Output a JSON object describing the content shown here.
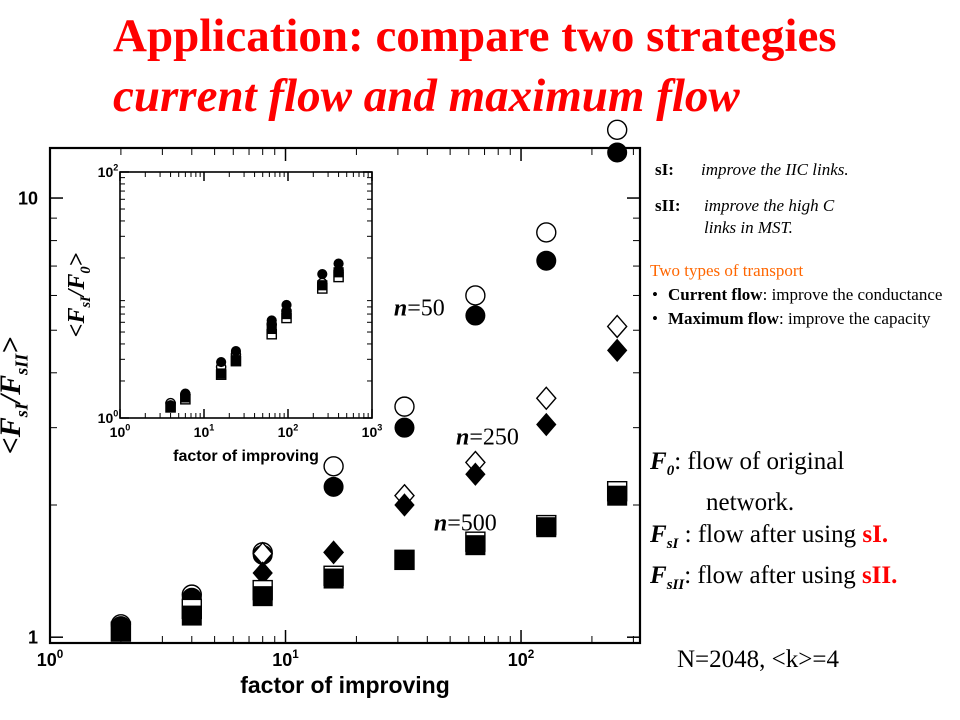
{
  "title": {
    "line1": "Application: compare two strategies",
    "line2": "current flow and maximum flow"
  },
  "strategies": [
    {
      "key": "sI:",
      "text": "improve the  IIC links."
    },
    {
      "key": "sII:",
      "text": "improve the high C"
    },
    {
      "key": "",
      "text": "links in MST."
    }
  ],
  "transport": {
    "heading": "Two types of transport",
    "items": [
      {
        "bold": "Current flow",
        "rest": ": improve the conductance"
      },
      {
        "bold": "Maximum flow",
        "rest": ": improve the capacity"
      }
    ]
  },
  "definitions": {
    "f0": {
      "sym": "F",
      "sub": "0",
      "text": ":  flow of original"
    },
    "f0_cont": "network.",
    "fsi": {
      "sym": "F",
      "sub": "sI",
      "text": " : flow after using ",
      "strategy": "sI."
    },
    "fsii": {
      "sym": "F",
      "sub": "sII",
      "text": ": flow after using ",
      "strategy": "sII."
    }
  },
  "network_note": "N=2048, <k>=4",
  "colors": {
    "title": "#ff0000",
    "transport_heading": "#ff6600",
    "ink": "#000000"
  },
  "chart_data": [
    {
      "type": "scatter",
      "scale": "log-log",
      "xlabel": "factor of improving",
      "ylabel_parts": [
        "<F",
        "sI",
        "/F",
        "sII",
        ">"
      ],
      "xlim": [
        1,
        320
      ],
      "ylim": [
        0.97,
        13
      ],
      "x_ticks": [
        {
          "value": 1,
          "base": "10",
          "exp": "0"
        },
        {
          "value": 10,
          "base": "10",
          "exp": "1"
        },
        {
          "value": 100,
          "base": "10",
          "exp": "2"
        }
      ],
      "y_ticks": [
        {
          "value": 1,
          "label": "1"
        },
        {
          "value": 10,
          "label": "10"
        }
      ],
      "annotations": [
        {
          "n": "n",
          "text": "=50",
          "x": 37,
          "y": 5.4
        },
        {
          "n": "n",
          "text": "=250",
          "x": 72,
          "y": 2.75
        },
        {
          "n": "n",
          "text": "=500",
          "x": 58,
          "y": 1.75
        }
      ],
      "series": [
        {
          "marker": "open-circle",
          "x": [
            2,
            4,
            8,
            16,
            32,
            64,
            128,
            256
          ],
          "y": [
            1.07,
            1.25,
            1.56,
            2.45,
            3.35,
            6.0,
            8.35,
            14.3
          ]
        },
        {
          "marker": "filled-circle",
          "x": [
            2,
            4,
            8,
            16,
            32,
            64,
            128,
            256
          ],
          "y": [
            1.06,
            1.23,
            1.54,
            2.2,
            3.0,
            5.4,
            7.2,
            12.7
          ]
        },
        {
          "marker": "open-diamond",
          "x": [
            8,
            16,
            32,
            64,
            128,
            256
          ],
          "y": [
            1.55,
            1.56,
            2.1,
            2.5,
            3.5,
            5.1
          ]
        },
        {
          "marker": "filled-diamond",
          "x": [
            8,
            16,
            32,
            64,
            128,
            256
          ],
          "y": [
            1.4,
            1.56,
            2.0,
            2.35,
            3.05,
            4.5
          ]
        },
        {
          "marker": "open-square",
          "x": [
            2,
            4,
            8,
            16,
            32,
            64,
            128,
            256
          ],
          "y": [
            1.03,
            1.16,
            1.28,
            1.38,
            1.5,
            1.65,
            1.8,
            2.15
          ]
        },
        {
          "marker": "filled-square",
          "x": [
            2,
            4,
            8,
            16,
            32,
            64,
            128,
            256
          ],
          "y": [
            1.03,
            1.12,
            1.24,
            1.36,
            1.5,
            1.62,
            1.78,
            2.1
          ]
        }
      ]
    },
    {
      "type": "scatter",
      "scale": "log-log",
      "xlabel": "factor of improving",
      "ylabel_parts": [
        "<F",
        "sI",
        "/F",
        "0",
        ">"
      ],
      "xlim": [
        1,
        1000
      ],
      "ylim": [
        1,
        100
      ],
      "x_ticks": [
        {
          "value": 1,
          "base": "10",
          "exp": "0"
        },
        {
          "value": 10,
          "base": "10",
          "exp": "1"
        },
        {
          "value": 100,
          "base": "10",
          "exp": "2"
        },
        {
          "value": 1000,
          "base": "10",
          "exp": "3"
        }
      ],
      "y_ticks": [
        {
          "value": 1,
          "base": "10",
          "exp": "0"
        },
        {
          "value": 100,
          "base": "10",
          "exp": "2"
        }
      ],
      "series": [
        {
          "marker": "open-circle",
          "x": [
            4,
            6,
            16,
            24,
            64,
            96,
            256,
            400
          ],
          "y": [
            1.32,
            1.55,
            2.6,
            3.3,
            5.8,
            7.4,
            12.5,
            15.7
          ]
        },
        {
          "marker": "filled-circle",
          "x": [
            4,
            6,
            16,
            24,
            64,
            96,
            256,
            400
          ],
          "y": [
            1.27,
            1.58,
            2.85,
            3.5,
            6.2,
            8.3,
            14.8,
            18.0
          ]
        },
        {
          "marker": "open-square",
          "x": [
            4,
            6,
            16,
            24,
            64,
            96,
            256,
            400
          ],
          "y": [
            1.22,
            1.42,
            2.25,
            2.9,
            4.8,
            6.5,
            11.3,
            14.0
          ]
        },
        {
          "marker": "filled-square",
          "x": [
            4,
            6,
            16,
            24,
            64,
            96,
            256,
            400
          ],
          "y": [
            1.24,
            1.47,
            2.3,
            2.95,
            5.3,
            7.0,
            12.0,
            15.3
          ]
        }
      ]
    }
  ]
}
